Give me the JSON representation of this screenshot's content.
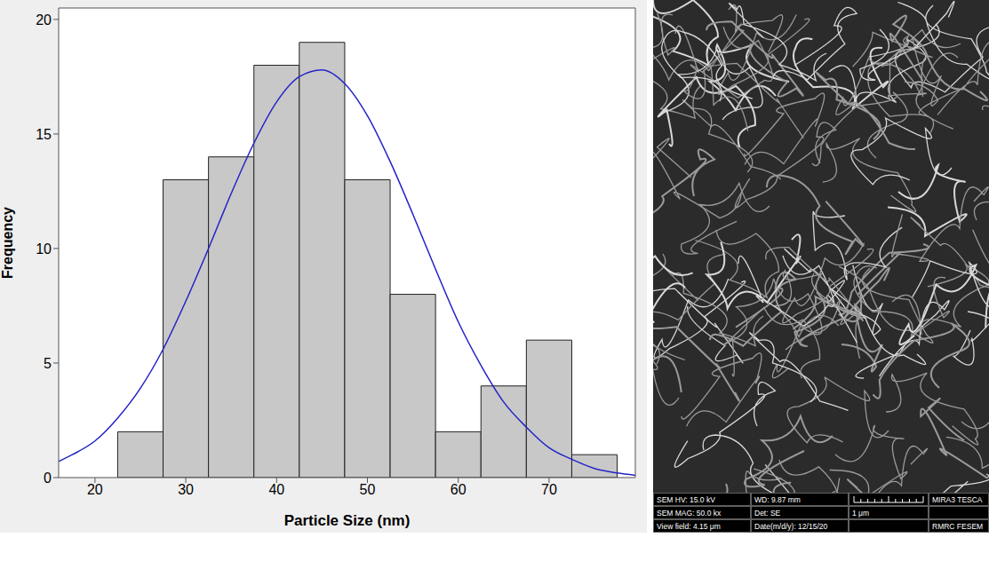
{
  "chart_data": {
    "type": "histogram",
    "x_label": "Particle Size (nm)",
    "y_label": "Frequency",
    "bins": [
      22.5,
      27.5,
      32.5,
      37.5,
      42.5,
      47.5,
      52.5,
      57.5,
      62.5,
      67.5,
      72.5,
      77.5
    ],
    "counts": [
      2,
      13,
      14,
      18,
      19,
      13,
      8,
      2,
      4,
      6,
      1
    ],
    "color": "#c8c8c8",
    "xlim": [
      16,
      79.5
    ],
    "xticks": [
      20,
      30,
      40,
      50,
      60,
      70
    ],
    "ylim": [
      0,
      20.5
    ],
    "yticks": [
      0,
      5,
      10,
      15,
      20
    ],
    "grid": false,
    "fit_curve": {
      "x": [
        16,
        17.5,
        20,
        22.5,
        25,
        27.5,
        30,
        32.5,
        35,
        37.5,
        40,
        42.5,
        45,
        47.5,
        50,
        52.5,
        55,
        57.5,
        60,
        62.5,
        65,
        67.5,
        70,
        72.5,
        75,
        77.5,
        79.5
      ],
      "values": [
        0.7,
        1.0,
        1.6,
        2.6,
        3.9,
        5.6,
        7.7,
        10.0,
        12.4,
        14.6,
        16.4,
        17.5,
        17.8,
        17.2,
        15.8,
        13.8,
        11.5,
        9.1,
        6.8,
        4.9,
        3.3,
        2.2,
        1.3,
        0.8,
        0.4,
        0.2,
        0.1
      ],
      "color": "#2424c8"
    }
  },
  "sem_image": {
    "info_bar": [
      [
        "SEM HV: 15.0 kV",
        "WD: 9.87 mm",
        null,
        "MIRA3 TESCA"
      ],
      [
        "SEM MAG: 50.0 kx",
        "Det: SE",
        "1 μm",
        null
      ],
      [
        "View field: 4.15 μm",
        "Date(m/d/y): 12/15/20",
        null,
        "RMRC FESEM"
      ]
    ]
  }
}
